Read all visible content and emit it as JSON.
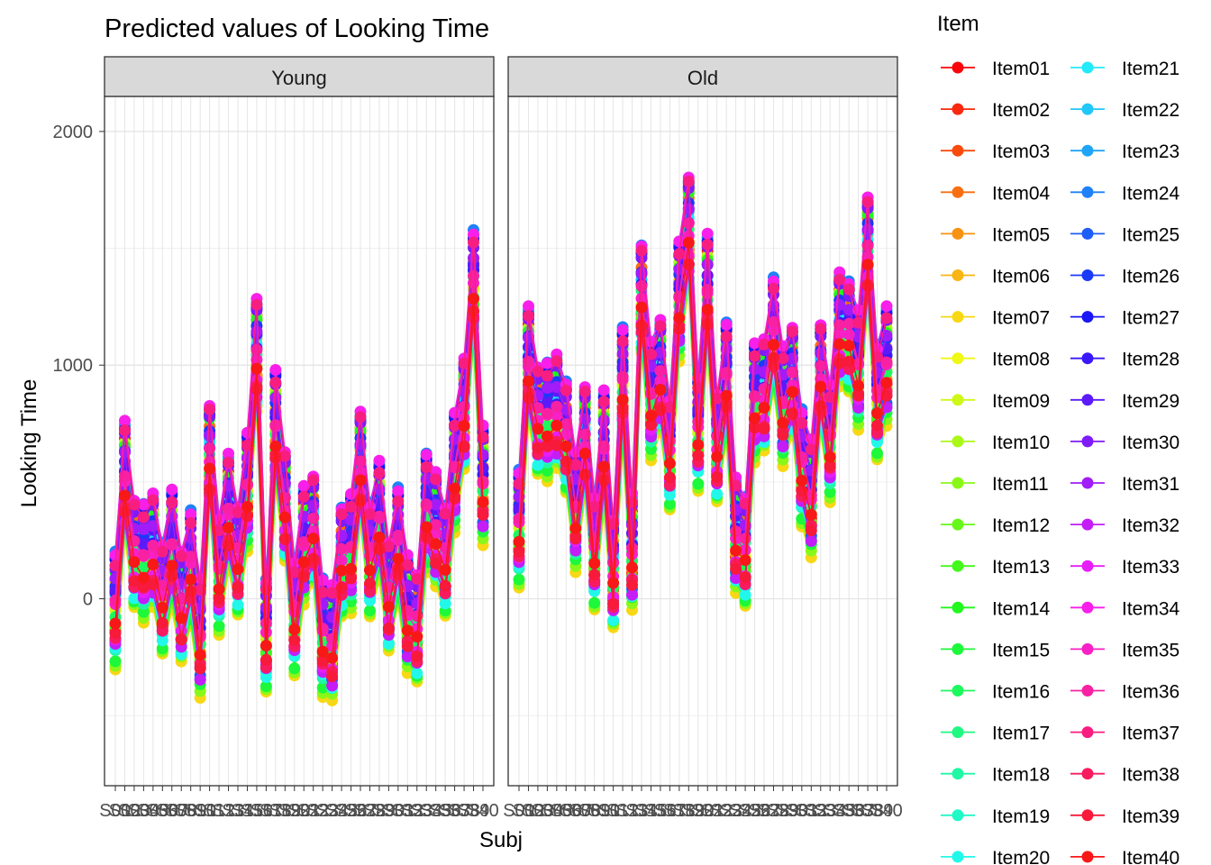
{
  "chart_data": {
    "type": "line",
    "title": "Predicted values of Looking Time",
    "xlabel": "Subj",
    "ylabel": "Looking Time",
    "ylim": [
      -800,
      2150
    ],
    "yticks": [
      0,
      1000,
      2000
    ],
    "grid": true,
    "legend_title": "Item",
    "legend_position": "right",
    "panels": [
      {
        "label": "Young",
        "tick_labels": [
          "S01",
          "S02",
          "S03",
          "S04",
          "S05",
          "S06",
          "S07",
          "S08",
          "S09",
          "S10",
          "S11",
          "S12",
          "S13",
          "S14",
          "S15",
          "S16",
          "S17",
          "S18",
          "S19",
          "S20",
          "S21",
          "S22",
          "S23",
          "S24",
          "S25",
          "S26",
          "S27",
          "S28",
          "S29",
          "S30",
          "S31",
          "S32",
          "S33",
          "S34",
          "S35",
          "S36",
          "S37",
          "S38",
          "S39",
          "S40"
        ],
        "subject_means": [
          -50,
          500,
          190,
          155,
          195,
          0,
          210,
          -45,
          130,
          -175,
          590,
          100,
          360,
          160,
          460,
          1030,
          -160,
          720,
          385,
          -80,
          220,
          290,
          -165,
          -200,
          155,
          195,
          550,
          165,
          330,
          0,
          225,
          -75,
          -130,
          370,
          285,
          160,
          540,
          780,
          1330,
          480
        ]
      },
      {
        "label": "Old",
        "tick_labels": [
          "S01",
          "S02",
          "S03",
          "S04",
          "S05",
          "S06",
          "S07",
          "S08",
          "S09",
          "S10",
          "S11",
          "S12",
          "S13",
          "S14",
          "S15",
          "S16",
          "S17",
          "S18",
          "S19",
          "S20",
          "S21",
          "S22",
          "S23",
          "S24",
          "S25",
          "S26",
          "S27",
          "S28",
          "S29",
          "S30",
          "S31",
          "S32",
          "S33",
          "S34",
          "S35",
          "S36",
          "S37",
          "S38",
          "S39",
          "S40"
        ],
        "subject_means": [
          300,
          990,
          760,
          760,
          790,
          690,
          370,
          660,
          200,
          630,
          100,
          910,
          190,
          1280,
          850,
          940,
          620,
          1270,
          1560,
          710,
          1300,
          640,
          930,
          260,
          200,
          840,
          860,
          1130,
          820,
          920,
          560,
          420,
          940,
          670,
          1140,
          1120,
          980,
          1470,
          840,
          990
        ]
      }
    ],
    "item_offsets": [
      -90,
      200,
      -80,
      145,
      -65,
      100,
      -240,
      20,
      -15,
      185,
      -220,
      225,
      -85,
      165,
      -200,
      -35,
      30,
      -160,
      -135,
      -175,
      70,
      80,
      230,
      235,
      -135,
      120,
      215,
      60,
      95,
      190,
      125,
      -155,
      -110,
      245,
      10,
      40,
      210,
      -120,
      -115,
      -50
    ],
    "series": [
      {
        "name": "Item01",
        "color": "#F8060C"
      },
      {
        "name": "Item02",
        "color": "#F8290F"
      },
      {
        "name": "Item03",
        "color": "#F84C0F"
      },
      {
        "name": "Item04",
        "color": "#F86F11"
      },
      {
        "name": "Item05",
        "color": "#F89212"
      },
      {
        "name": "Item06",
        "color": "#F8B513"
      },
      {
        "name": "Item07",
        "color": "#F8D814"
      },
      {
        "name": "Item08",
        "color": "#F0F815"
      },
      {
        "name": "Item09",
        "color": "#CEF817"
      },
      {
        "name": "Item10",
        "color": "#ABF818"
      },
      {
        "name": "Item11",
        "color": "#89F819"
      },
      {
        "name": "Item12",
        "color": "#66F81A"
      },
      {
        "name": "Item13",
        "color": "#43F81B"
      },
      {
        "name": "Item14",
        "color": "#21F81D"
      },
      {
        "name": "Item15",
        "color": "#1DF83A"
      },
      {
        "name": "Item16",
        "color": "#1EF85E"
      },
      {
        "name": "Item17",
        "color": "#1FF881"
      },
      {
        "name": "Item18",
        "color": "#20F8A4"
      },
      {
        "name": "Item19",
        "color": "#21F8C7"
      },
      {
        "name": "Item20",
        "color": "#22F8EA"
      },
      {
        "name": "Item21",
        "color": "#22EAF8"
      },
      {
        "name": "Item22",
        "color": "#20C7F8"
      },
      {
        "name": "Item23",
        "color": "#1FA4F8"
      },
      {
        "name": "Item24",
        "color": "#1E81F8"
      },
      {
        "name": "Item25",
        "color": "#1D5EF8"
      },
      {
        "name": "Item26",
        "color": "#1B3AF8"
      },
      {
        "name": "Item27",
        "color": "#1A17F8"
      },
      {
        "name": "Item28",
        "color": "#3A19F8"
      },
      {
        "name": "Item29",
        "color": "#5C1AF8"
      },
      {
        "name": "Item30",
        "color": "#7F1BF8"
      },
      {
        "name": "Item31",
        "color": "#A11CF8"
      },
      {
        "name": "Item32",
        "color": "#C41DF8"
      },
      {
        "name": "Item33",
        "color": "#E61EF8"
      },
      {
        "name": "Item34",
        "color": "#F81FEA"
      },
      {
        "name": "Item35",
        "color": "#F820C7"
      },
      {
        "name": "Item36",
        "color": "#F821A4"
      },
      {
        "name": "Item37",
        "color": "#F81E81"
      },
      {
        "name": "Item38",
        "color": "#F81C5E"
      },
      {
        "name": "Item39",
        "color": "#F81A3A"
      },
      {
        "name": "Item40",
        "color": "#F81817"
      }
    ]
  }
}
